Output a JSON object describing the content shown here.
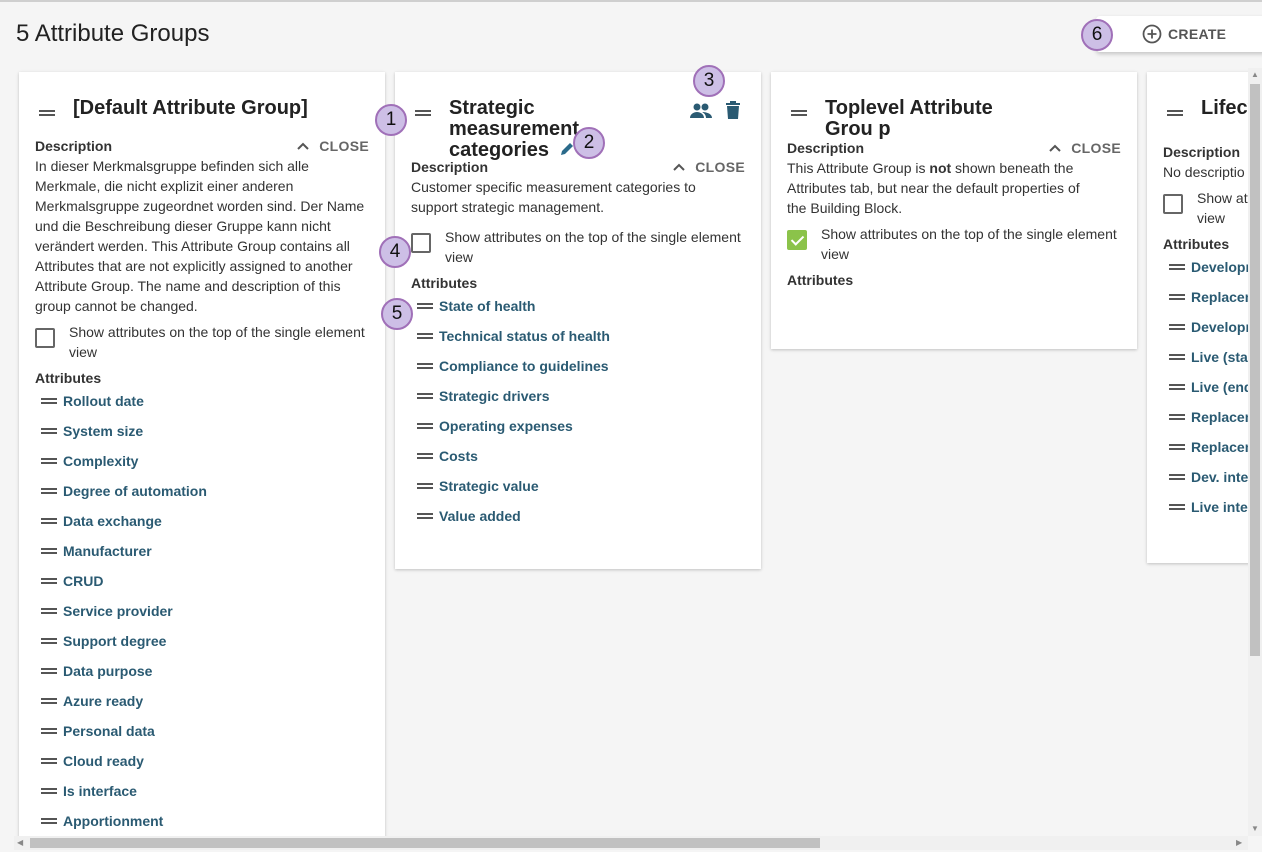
{
  "page": {
    "title": "5 Attribute Groups",
    "create_label": "CREATE"
  },
  "labels": {
    "description": "Description",
    "close": "CLOSE",
    "attributes": "Attributes",
    "show_top": "Show attributes on the top of the single element view"
  },
  "badges": [
    "1",
    "2",
    "3",
    "4",
    "5",
    "6"
  ],
  "colors": {
    "attribute_text": "#2a5a72",
    "checkbox_checked": "#8bc34a",
    "badge_fill": "#cdbfe6"
  },
  "groups": [
    {
      "name": "[Default Attribute Group]",
      "description": "In dieser Merkmalsgruppe befinden sich alle Merkmale, die nicht explizit einer anderen Merkmalsgruppe zugeordnet worden sind. Der Name und die Beschreibung dieser Gruppe kann nicht verändert werden. This Attribute Group contains all Attributes that are not explicitly assigned to another Attribute Group. The name and description of this group cannot be changed.",
      "show_top": false,
      "attributes": [
        "Rollout date",
        "System size",
        "Complexity",
        "Degree of automation",
        "Data exchange",
        "Manufacturer",
        "CRUD",
        "Service provider",
        "Support degree",
        "Data purpose",
        "Azure ready",
        "Personal data",
        "Cloud ready",
        "Is interface",
        "Apportionment"
      ]
    },
    {
      "name": "Strategic measurement categories",
      "description": "Customer specific measurement categories to support strategic management.",
      "show_top": false,
      "attributes": [
        "State of health",
        "Technical status of health",
        "Compliance to guidelines",
        "Strategic drivers",
        "Operating expenses",
        "Costs",
        "Strategic value",
        "Value added"
      ]
    },
    {
      "name": "Toplevel Attribute Grou p",
      "description_pre": "This Attribute Group is ",
      "description_bold": "not",
      "description_post": " shown beneath the Attributes tab, but near the default properties of the Building Block.",
      "show_top": true,
      "attributes": []
    },
    {
      "name": "Lifecy",
      "description": "No descriptio",
      "show_top_label": "Show att",
      "show_top_label2": "view",
      "show_top": false,
      "attributes": [
        "Developm",
        "Replacem",
        "Developm",
        "Live (star",
        "Live (end",
        "Replacem",
        "Replacem",
        "Dev. inter",
        "Live inter"
      ]
    }
  ]
}
